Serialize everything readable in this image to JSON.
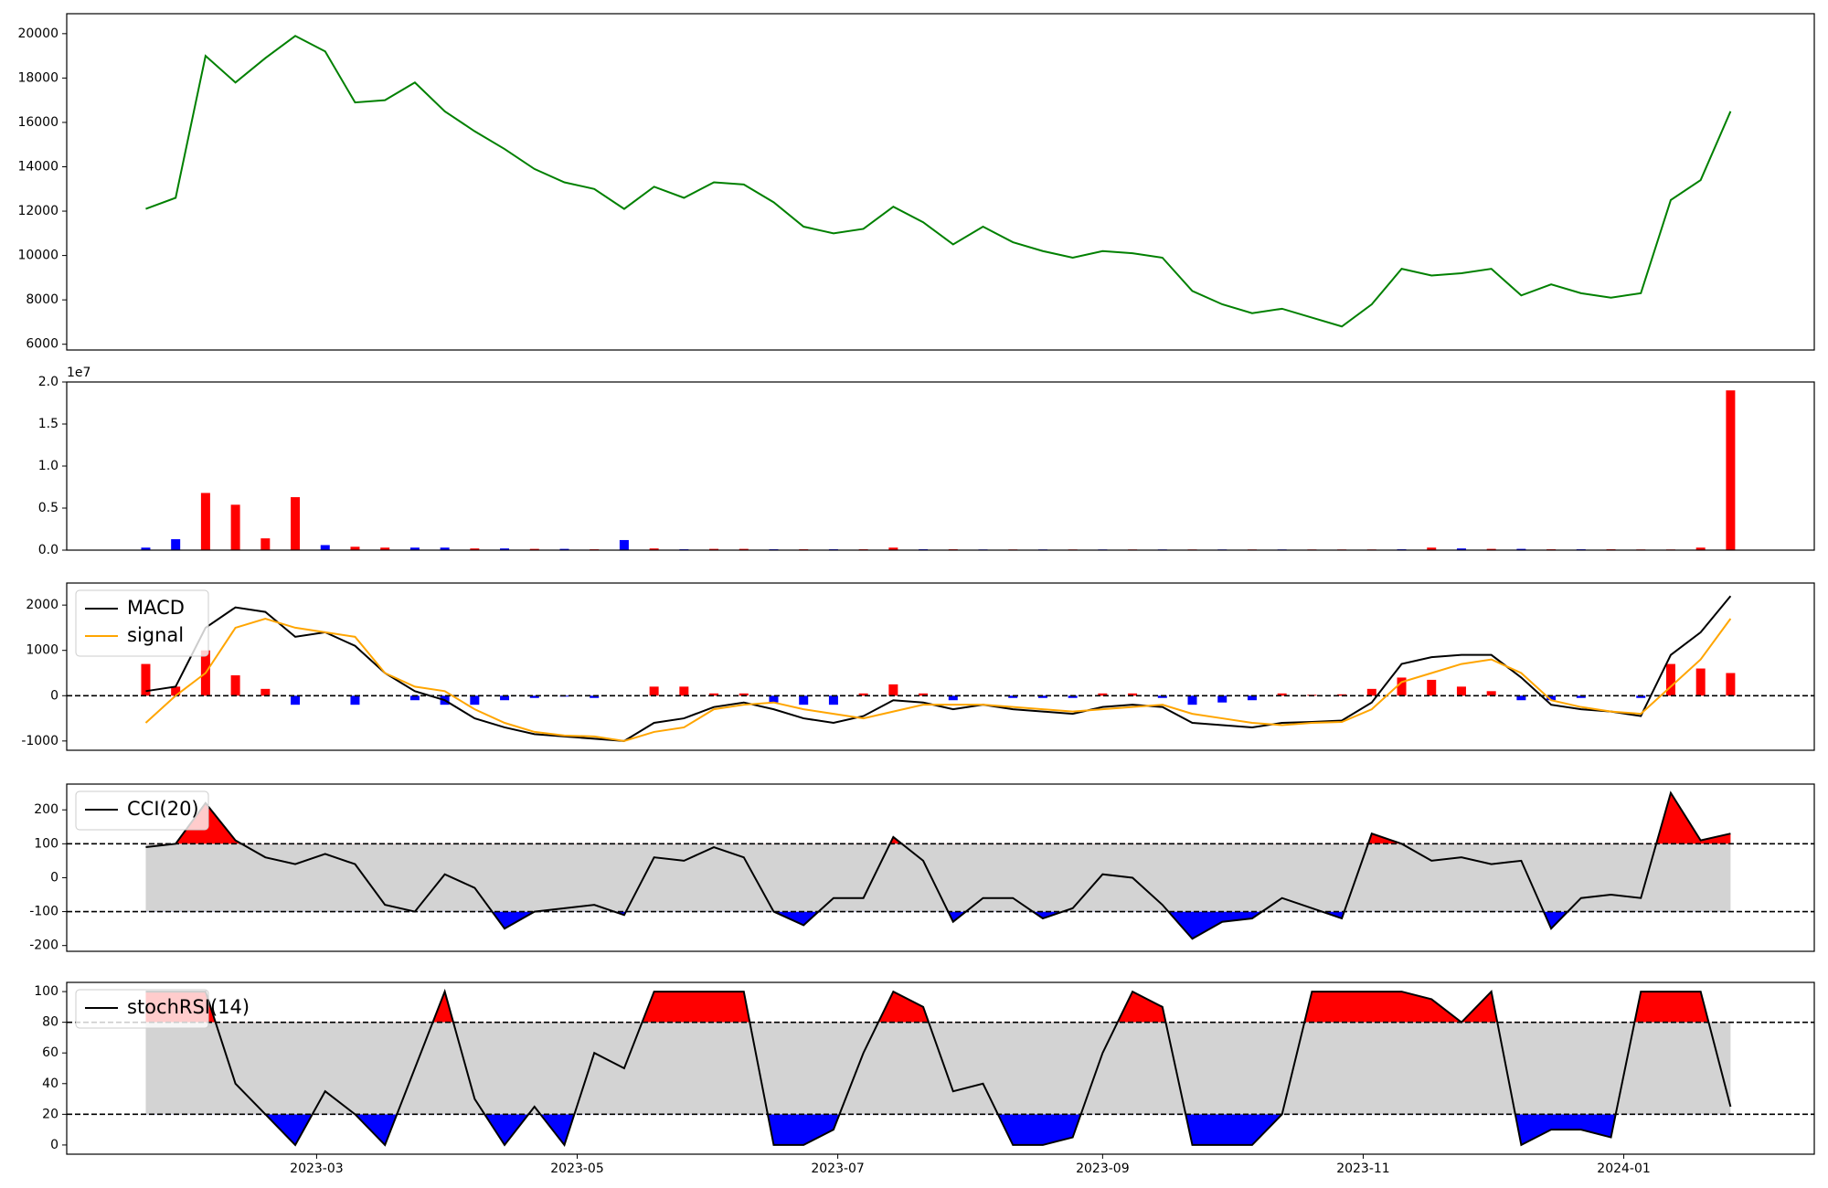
{
  "chart_data": [
    {
      "type": "line",
      "xlim": [
        19358.5,
        19767.6
      ],
      "ylim": [
        5740,
        20900
      ],
      "yticks": [
        6000,
        8000,
        10000,
        12000,
        14000,
        16000,
        18000,
        20000
      ],
      "x": [
        19377,
        19384,
        19391,
        19398,
        19405,
        19412,
        19419,
        19426,
        19433,
        19440,
        19447,
        19454,
        19461,
        19468,
        19475,
        19482,
        19489,
        19496,
        19503,
        19510,
        19517,
        19524,
        19531,
        19538,
        19545,
        19552,
        19559,
        19566,
        19573,
        19580,
        19587,
        19594,
        19601,
        19608,
        19615,
        19622,
        19629,
        19636,
        19643,
        19650,
        19657,
        19664,
        19671,
        19678,
        19685,
        19692,
        19699,
        19706,
        19713,
        19720,
        19727,
        19734,
        19741,
        19748
      ],
      "series": [
        {
          "color": "green",
          "values": [
            12100,
            12600,
            19000,
            17800,
            18900,
            19900,
            19200,
            16900,
            17000,
            17800,
            16500,
            15600,
            14800,
            13900,
            13300,
            13000,
            12100,
            13100,
            12600,
            13300,
            13200,
            12400,
            11300,
            11000,
            11200,
            12200,
            11500,
            10500,
            11300,
            10600,
            10200,
            9900,
            10200,
            10100,
            9900,
            8400,
            7800,
            7400,
            7600,
            7200,
            6800,
            7800,
            9400,
            9100,
            9200,
            9400,
            8200,
            8700,
            8300,
            8100,
            8300,
            12500,
            13400,
            16500
          ]
        }
      ]
    },
    {
      "type": "bar",
      "xlim": [
        19358.5,
        19767.6
      ],
      "ylim": [
        0,
        20000000
      ],
      "y_offset_label": "1e7",
      "yticks": [
        {
          "value": 0,
          "label": "0.0"
        },
        {
          "value": 5000000,
          "label": "0.5"
        },
        {
          "value": 10000000,
          "label": "1.0"
        },
        {
          "value": 15000000,
          "label": "1.5"
        },
        {
          "value": 20000000,
          "label": "2.0"
        }
      ],
      "x": [
        19377,
        19384,
        19391,
        19398,
        19405,
        19412,
        19419,
        19426,
        19433,
        19440,
        19447,
        19454,
        19461,
        19468,
        19475,
        19482,
        19489,
        19496,
        19503,
        19510,
        19517,
        19524,
        19531,
        19538,
        19545,
        19552,
        19559,
        19566,
        19573,
        19580,
        19587,
        19594,
        19601,
        19608,
        19615,
        19622,
        19629,
        19636,
        19643,
        19650,
        19657,
        19664,
        19671,
        19678,
        19685,
        19692,
        19699,
        19706,
        19713,
        19720,
        19727,
        19734,
        19741,
        19748
      ],
      "values": [
        300000,
        1300000,
        6800000,
        5400000,
        1400000,
        6300000,
        600000,
        400000,
        300000,
        300000,
        300000,
        200000,
        200000,
        150000,
        150000,
        100000,
        1200000,
        200000,
        100000,
        150000,
        150000,
        100000,
        100000,
        100000,
        100000,
        300000,
        100000,
        100000,
        80000,
        80000,
        80000,
        80000,
        80000,
        80000,
        80000,
        80000,
        80000,
        80000,
        80000,
        80000,
        80000,
        80000,
        100000,
        300000,
        200000,
        150000,
        150000,
        100000,
        100000,
        100000,
        80000,
        80000,
        300000,
        19000000
      ],
      "colors": [
        "blue",
        "blue",
        "red",
        "red",
        "red",
        "red",
        "blue",
        "red",
        "red",
        "blue",
        "blue",
        "red",
        "blue",
        "red",
        "blue",
        "red",
        "blue",
        "red",
        "blue",
        "red",
        "red",
        "blue",
        "red",
        "blue",
        "red",
        "red",
        "blue",
        "red",
        "blue",
        "red",
        "blue",
        "red",
        "blue",
        "red",
        "blue",
        "red",
        "blue",
        "red",
        "blue",
        "red",
        "red",
        "red",
        "blue",
        "red",
        "blue",
        "red",
        "blue",
        "red",
        "blue",
        "red",
        "red",
        "red",
        "red",
        "red"
      ]
    },
    {
      "type": "line",
      "xlim": [
        19358.5,
        19767.6
      ],
      "ylim": [
        -1205,
        2487
      ],
      "yticks": [
        -1000,
        0,
        1000,
        2000
      ],
      "hline": 0,
      "legend": "upper left",
      "x": [
        19377,
        19384,
        19391,
        19398,
        19405,
        19412,
        19419,
        19426,
        19433,
        19440,
        19447,
        19454,
        19461,
        19468,
        19475,
        19482,
        19489,
        19496,
        19503,
        19510,
        19517,
        19524,
        19531,
        19538,
        19545,
        19552,
        19559,
        19566,
        19573,
        19580,
        19587,
        19594,
        19601,
        19608,
        19615,
        19622,
        19629,
        19636,
        19643,
        19650,
        19657,
        19664,
        19671,
        19678,
        19685,
        19692,
        19699,
        19706,
        19713,
        19720,
        19727,
        19734,
        19741,
        19748
      ],
      "histogram": {
        "positive_color": "red",
        "negative_color": "blue",
        "values": [
          700,
          200,
          1000,
          450,
          150,
          -200,
          0,
          -200,
          0,
          -100,
          -200,
          -200,
          -100,
          -50,
          -20,
          -50,
          0,
          200,
          200,
          50,
          50,
          -150,
          -200,
          -200,
          50,
          250,
          50,
          -100,
          0,
          -50,
          -50,
          -50,
          50,
          50,
          -50,
          -200,
          -150,
          -100,
          50,
          20,
          30,
          150,
          400,
          350,
          200,
          100,
          -100,
          -100,
          -50,
          0,
          -50,
          700,
          600,
          500
        ]
      },
      "series": [
        {
          "name": "MACD",
          "color": "black",
          "values": [
            100,
            200,
            1500,
            1950,
            1850,
            1300,
            1400,
            1100,
            500,
            100,
            -100,
            -500,
            -700,
            -850,
            -900,
            -950,
            -1000,
            -600,
            -500,
            -250,
            -150,
            -300,
            -500,
            -600,
            -450,
            -100,
            -150,
            -300,
            -200,
            -300,
            -350,
            -400,
            -250,
            -200,
            -250,
            -600,
            -650,
            -700,
            -600,
            -580,
            -550,
            -150,
            700,
            850,
            900,
            900,
            400,
            -200,
            -300,
            -350,
            -450,
            900,
            1400,
            2200
          ]
        },
        {
          "name": "signal",
          "color": "orange",
          "values": [
            -600,
            0,
            500,
            1500,
            1700,
            1500,
            1400,
            1300,
            500,
            200,
            100,
            -300,
            -600,
            -800,
            -880,
            -900,
            -1000,
            -800,
            -700,
            -300,
            -200,
            -150,
            -300,
            -400,
            -500,
            -350,
            -200,
            -200,
            -200,
            -250,
            -300,
            -350,
            -300,
            -250,
            -200,
            -400,
            -500,
            -600,
            -650,
            -600,
            -580,
            -300,
            300,
            500,
            700,
            800,
            500,
            -100,
            -250,
            -350,
            -400,
            200,
            800,
            1700
          ]
        }
      ]
    },
    {
      "type": "line",
      "xlim": [
        19358.5,
        19767.6
      ],
      "ylim": [
        -217,
        276
      ],
      "yticks": [
        -200,
        -100,
        0,
        100,
        200
      ],
      "bands": [
        -100,
        100
      ],
      "band_color": "#d3d3d3",
      "upper_color": "red",
      "lower_color": "blue",
      "legend": "upper left",
      "x": [
        19377,
        19384,
        19391,
        19398,
        19405,
        19412,
        19419,
        19426,
        19433,
        19440,
        19447,
        19454,
        19461,
        19468,
        19475,
        19482,
        19489,
        19496,
        19503,
        19510,
        19517,
        19524,
        19531,
        19538,
        19545,
        19552,
        19559,
        19566,
        19573,
        19580,
        19587,
        19594,
        19601,
        19608,
        19615,
        19622,
        19629,
        19636,
        19643,
        19650,
        19657,
        19664,
        19671,
        19678,
        19685,
        19692,
        19699,
        19706,
        19713,
        19720,
        19727,
        19734,
        19741,
        19748
      ],
      "series": [
        {
          "name": "CCI(20)",
          "color": "black",
          "values": [
            90,
            100,
            220,
            110,
            60,
            40,
            70,
            40,
            -80,
            -100,
            10,
            -30,
            -150,
            -100,
            -90,
            -80,
            -110,
            60,
            50,
            90,
            60,
            -100,
            -140,
            -60,
            -60,
            120,
            50,
            -130,
            -60,
            -60,
            -120,
            -90,
            10,
            0,
            -80,
            -180,
            -130,
            -120,
            -60,
            -90,
            -120,
            130,
            100,
            50,
            60,
            40,
            50,
            -150,
            -60,
            -50,
            -60,
            250,
            110,
            130
          ]
        }
      ]
    },
    {
      "type": "line",
      "xlim": [
        19358.5,
        19767.6
      ],
      "ylim": [
        -6,
        106
      ],
      "yticks": [
        0,
        20,
        40,
        60,
        80,
        100
      ],
      "bands": [
        20,
        80
      ],
      "band_color": "#d3d3d3",
      "upper_color": "red",
      "lower_color": "blue",
      "legend": "upper left",
      "xticks": [
        {
          "value": 19417,
          "label": "2023-03"
        },
        {
          "value": 19478,
          "label": "2023-05"
        },
        {
          "value": 19539,
          "label": "2023-07"
        },
        {
          "value": 19601,
          "label": "2023-09"
        },
        {
          "value": 19662,
          "label": "2023-11"
        },
        {
          "value": 19723,
          "label": "2024-01"
        }
      ],
      "x": [
        19377,
        19384,
        19391,
        19398,
        19405,
        19412,
        19419,
        19426,
        19433,
        19440,
        19447,
        19454,
        19461,
        19468,
        19475,
        19482,
        19489,
        19496,
        19503,
        19510,
        19517,
        19524,
        19531,
        19538,
        19545,
        19552,
        19559,
        19566,
        19573,
        19580,
        19587,
        19594,
        19601,
        19608,
        19615,
        19622,
        19629,
        19636,
        19643,
        19650,
        19657,
        19664,
        19671,
        19678,
        19685,
        19692,
        19699,
        19706,
        19713,
        19720,
        19727,
        19734,
        19741,
        19748
      ],
      "series": [
        {
          "name": "stochRSI(14)",
          "color": "black",
          "values": [
            100,
            100,
            100,
            40,
            20,
            0,
            35,
            20,
            0,
            50,
            100,
            30,
            0,
            25,
            0,
            60,
            50,
            100,
            100,
            100,
            100,
            0,
            0,
            10,
            60,
            100,
            90,
            35,
            40,
            0,
            0,
            5,
            60,
            100,
            90,
            0,
            0,
            0,
            20,
            100,
            100,
            100,
            100,
            95,
            80,
            100,
            0,
            10,
            10,
            5,
            100,
            100,
            100,
            25
          ]
        }
      ]
    }
  ]
}
